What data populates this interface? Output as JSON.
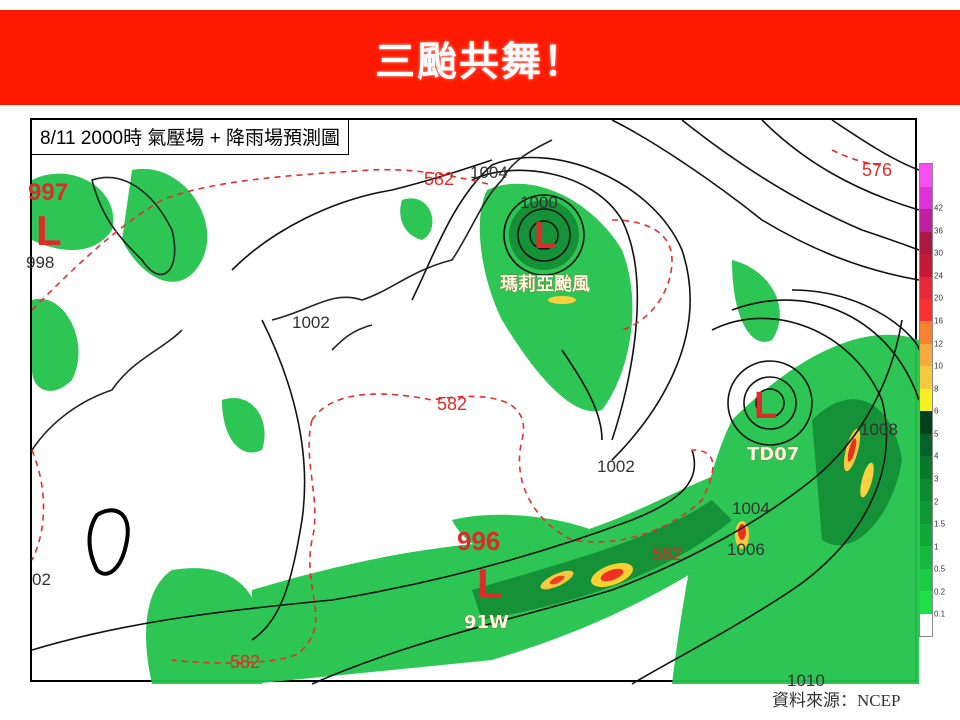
{
  "banner": {
    "title": "三颱共舞！",
    "color": "#fe1a00"
  },
  "map": {
    "caption": "8/11 2000時  氣壓場 + 降雨場預測圖",
    "systems": [
      {
        "name": "瑪莉亞颱風",
        "symbol": "L"
      },
      {
        "name": "TD07",
        "symbol": "L"
      },
      {
        "name": "91W",
        "symbol": "L",
        "pressure": "996"
      },
      {
        "name": "",
        "symbol": "L",
        "pressure": "997"
      }
    ],
    "isobar_labels": [
      "1004",
      "1000",
      "1002",
      "1002",
      "1004",
      "1006",
      "1008",
      "998",
      "1010",
      "02"
    ],
    "height_labels": [
      "582",
      "582",
      "582",
      "582",
      "576"
    ],
    "colors": {
      "rain_light": "#22c24a",
      "rain_dark": "#0b7a2e",
      "isobar": "#111111",
      "height_contour": "#e03030",
      "low_marker": "#e02a2a"
    }
  },
  "colorbar": {
    "ticks": [
      "0.1",
      "0.2",
      "0.5",
      "1",
      "1.5",
      "2",
      "3",
      "4",
      "5",
      "6",
      "8",
      "10",
      "12",
      "16",
      "20",
      "24",
      "30",
      "36",
      "42"
    ],
    "colors": [
      "#ffffff",
      "#1ee04a",
      "#18cc44",
      "#14b83e",
      "#11a83a",
      "#0f9a35",
      "#0c8a30",
      "#0a782a",
      "#08602a",
      "#053f1c",
      "#f8f020",
      "#f8c840",
      "#f8a840",
      "#f88030",
      "#f83030",
      "#e82838",
      "#c81838",
      "#a81840",
      "#c020a0",
      "#e030d8",
      "#f850f0"
    ]
  },
  "source": "資料來源：NCEP"
}
